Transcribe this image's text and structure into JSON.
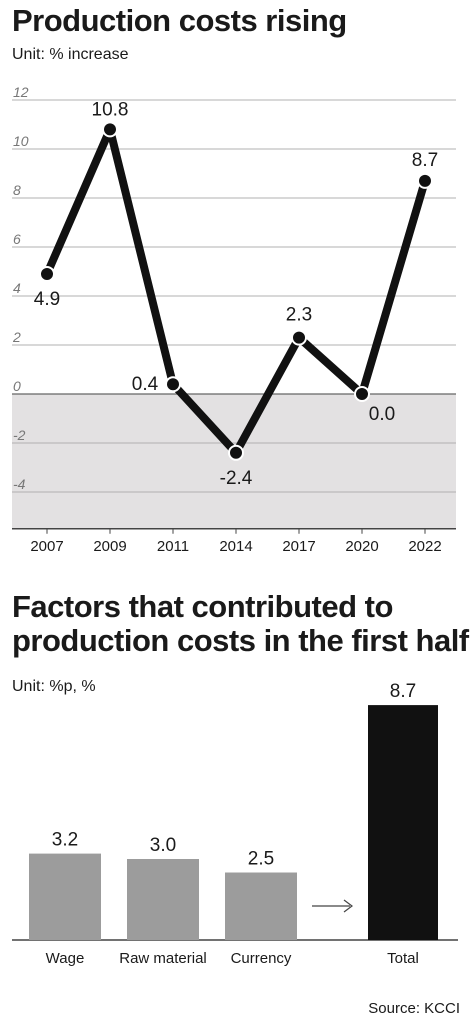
{
  "line_chart": {
    "title": "Production costs rising",
    "unit": "Unit: % increase",
    "yticks": [
      "12",
      "10",
      "8",
      "6",
      "4",
      "2",
      "0",
      "-2",
      "-4"
    ]
  },
  "bar_chart": {
    "title": "Factors that contributed to production costs in the first half",
    "unit": "Unit: %p, %"
  },
  "source": "Source: KCCI",
  "colors": {
    "line": "#111111",
    "bar": "#9c9c9c",
    "total_bar": "#111111",
    "negative_band": "#e3e1e2",
    "grid": "#b0b0b0"
  },
  "chart_data": [
    {
      "type": "line",
      "title": "Production costs rising",
      "categories": [
        "2007",
        "2009",
        "2011",
        "2014",
        "2017",
        "2020",
        "2022"
      ],
      "values": [
        4.9,
        10.8,
        0.4,
        -2.4,
        2.3,
        0.0,
        8.7
      ],
      "labels": [
        "4.9",
        "10.8",
        "0.4",
        "-2.4",
        "2.3",
        "0.0",
        "8.7"
      ],
      "ylim": [
        -5.5,
        12
      ],
      "grid": true
    },
    {
      "type": "bar",
      "title": "Factors that contributed to production costs in the first half",
      "categories": [
        "Wage",
        "Raw material",
        "Currency",
        "Total"
      ],
      "values": [
        3.2,
        3.0,
        2.5,
        8.7
      ],
      "labels": [
        "3.2",
        "3.0",
        "2.5",
        "8.7"
      ]
    }
  ]
}
